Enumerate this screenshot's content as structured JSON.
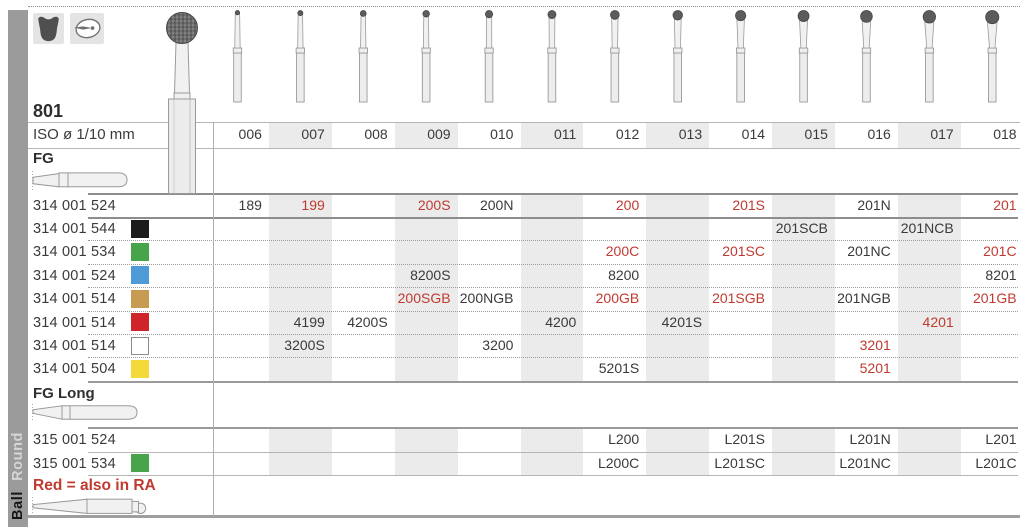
{
  "header": {
    "figure_number": "801",
    "iso_row_label": "ISO ø 1/10 mm",
    "iso_sizes": [
      "006",
      "007",
      "008",
      "009",
      "010",
      "011",
      "012",
      "013",
      "014",
      "015",
      "016",
      "017",
      "018"
    ],
    "icons": [
      {
        "name": "tooth-icon"
      },
      {
        "name": "bur-in-cavity-icon"
      }
    ]
  },
  "sidebar": {
    "group_label": "Round",
    "shape_label": "Ball"
  },
  "sections": [
    {
      "id": "fg",
      "label": "FG"
    },
    {
      "id": "fg-long",
      "label": "FG Long"
    }
  ],
  "footnote": {
    "text": "Red = also in RA"
  },
  "colors": {
    "highlight_red": "#c03a30",
    "band_gray": "#ebebeb",
    "chip_black": "#1b1b1b",
    "chip_green": "#48a44a",
    "chip_blue": "#4e9bd7",
    "chip_gold": "#c79b51",
    "chip_red": "#cf2429",
    "chip_white": "#ffffff",
    "chip_yellow": "#f3da3a"
  },
  "rows": [
    {
      "section": "FG",
      "code": "314 001 524",
      "chip": null,
      "cells": {
        "006": {
          "t": "189"
        },
        "007": {
          "t": "199",
          "red": true
        },
        "009": {
          "t": "200S",
          "red": true
        },
        "010": {
          "t": "200N"
        },
        "012": {
          "t": "200",
          "red": true
        },
        "014": {
          "t": "201S",
          "red": true
        },
        "016": {
          "t": "201N"
        },
        "018": {
          "t": "201",
          "red": true
        }
      }
    },
    {
      "section": "FG",
      "code": "314 001 544",
      "chip": "black",
      "cells": {
        "015": {
          "t": "201SCB"
        },
        "017": {
          "t": "201NCB"
        }
      }
    },
    {
      "section": "FG",
      "code": "314 001 534",
      "chip": "green",
      "cells": {
        "012": {
          "t": "200C",
          "red": true
        },
        "014": {
          "t": "201SC",
          "red": true
        },
        "016": {
          "t": "201NC"
        },
        "018": {
          "t": "201C",
          "red": true
        }
      }
    },
    {
      "section": "FG",
      "code": "314 001 524",
      "chip": "blue",
      "cells": {
        "009": {
          "t": "8200S"
        },
        "012": {
          "t": "8200"
        },
        "018": {
          "t": "8201"
        }
      }
    },
    {
      "section": "FG",
      "code": "314 001 514",
      "chip": "gold",
      "cells": {
        "009": {
          "t": "200SGB",
          "red": true
        },
        "010": {
          "t": "200NGB"
        },
        "012": {
          "t": "200GB",
          "red": true
        },
        "014": {
          "t": "201SGB",
          "red": true
        },
        "016": {
          "t": "201NGB"
        },
        "018": {
          "t": "201GB",
          "red": true
        }
      }
    },
    {
      "section": "FG",
      "code": "314 001 514",
      "chip": "red",
      "cells": {
        "007": {
          "t": "4199"
        },
        "008": {
          "t": "4200S"
        },
        "011": {
          "t": "4200"
        },
        "013": {
          "t": "4201S"
        },
        "017": {
          "t": "4201",
          "red": true
        }
      }
    },
    {
      "section": "FG",
      "code": "314 001 514",
      "chip": "white",
      "cells": {
        "007": {
          "t": "3200S"
        },
        "010": {
          "t": "3200"
        },
        "016": {
          "t": "3201",
          "red": true
        }
      }
    },
    {
      "section": "FG",
      "code": "314 001 504",
      "chip": "yellow",
      "cells": {
        "012": {
          "t": "5201S"
        },
        "016": {
          "t": "5201",
          "red": true
        }
      }
    },
    {
      "section": "FG Long",
      "code": "315 001 524",
      "chip": null,
      "cells": {
        "012": {
          "t": "L200"
        },
        "014": {
          "t": "L201S"
        },
        "016": {
          "t": "L201N"
        },
        "018": {
          "t": "L201"
        }
      }
    },
    {
      "section": "FG Long",
      "code": "315 001 534",
      "chip": "green",
      "cells": {
        "012": {
          "t": "L200C"
        },
        "014": {
          "t": "L201SC"
        },
        "016": {
          "t": "L201NC"
        },
        "018": {
          "t": "L201C"
        }
      }
    }
  ]
}
